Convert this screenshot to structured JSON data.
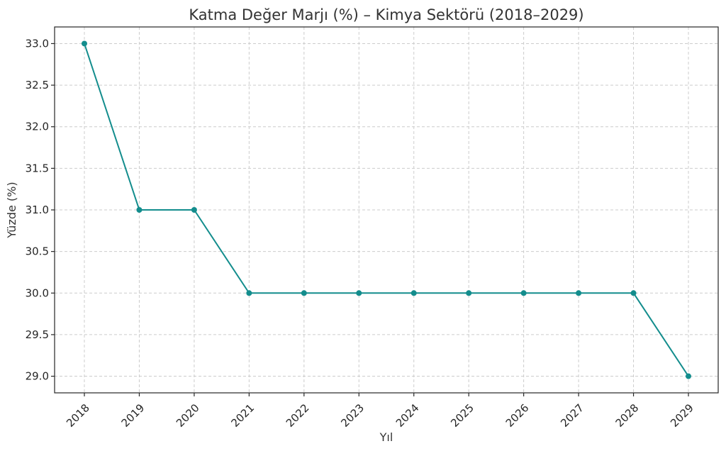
{
  "chart_data": {
    "type": "line",
    "title": "Katma Değer Marjı (%) – Kimya Sektörü (2018–2029)",
    "xlabel": "Yıl",
    "ylabel": "Yüzde (%)",
    "categories": [
      "2018",
      "2019",
      "2020",
      "2021",
      "2022",
      "2023",
      "2024",
      "2025",
      "2026",
      "2027",
      "2028",
      "2029"
    ],
    "series": [
      {
        "values": [
          33.0,
          31.0,
          31.0,
          30.0,
          30.0,
          30.0,
          30.0,
          30.0,
          30.0,
          30.0,
          30.0,
          29.0
        ]
      }
    ],
    "yticks": [
      "29.0",
      "29.5",
      "30.0",
      "30.5",
      "31.0",
      "31.5",
      "32.0",
      "32.5",
      "33.0"
    ],
    "ylim": [
      28.8,
      33.2
    ],
    "grid": true,
    "line_color": "#138d8d",
    "x_tick_rotation": "45deg"
  }
}
